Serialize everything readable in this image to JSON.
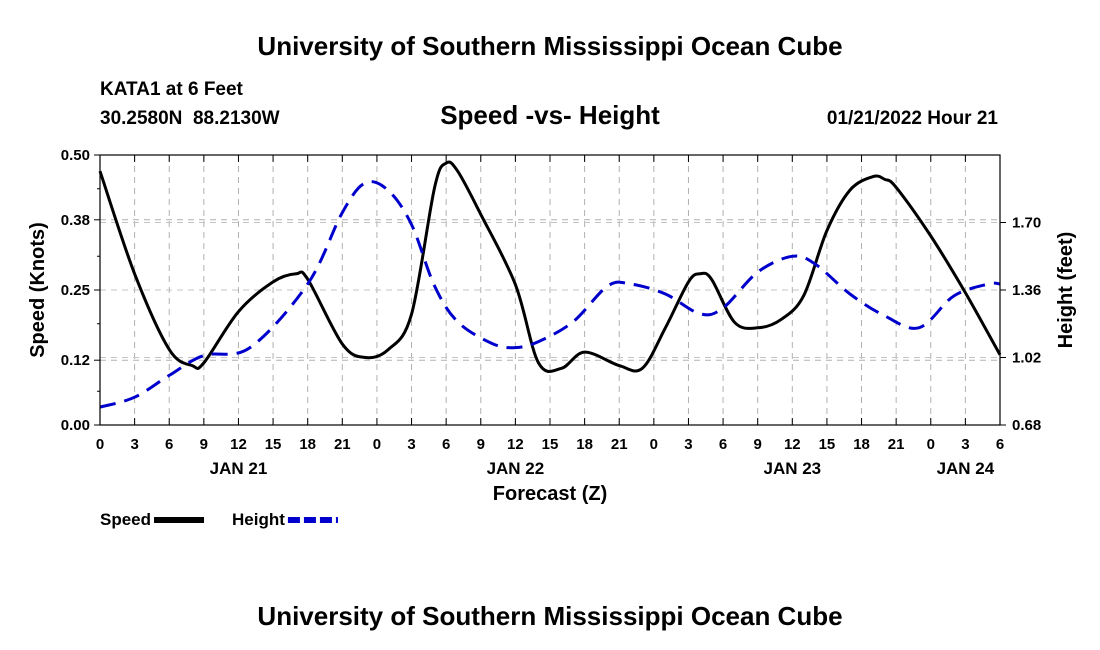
{
  "header": {
    "title": "University of Southern Mississippi Ocean Cube",
    "station": "KATA1 at 6 Feet",
    "coords": "30.2580N  88.2130W",
    "datetime": "01/21/2022 Hour 21",
    "footer_title": "University of Southern Mississippi Ocean Cube"
  },
  "chart_data": {
    "type": "line",
    "title": "Speed -vs- Height",
    "xlabel": "Forecast (Z)",
    "ylabel_left": "Speed (Knots)",
    "ylabel_right": "Height (feet)",
    "x_hours_from_start": [
      0,
      78
    ],
    "x_tick_labels": [
      "0",
      "3",
      "6",
      "9",
      "12",
      "15",
      "18",
      "21",
      "0",
      "3",
      "6",
      "9",
      "12",
      "15",
      "18",
      "21",
      "0",
      "3",
      "6",
      "9",
      "12",
      "15",
      "18",
      "21",
      "0",
      "3",
      "6"
    ],
    "day_labels": [
      {
        "label": "JAN 21",
        "hour": 12
      },
      {
        "label": "JAN 22",
        "hour": 36
      },
      {
        "label": "JAN 23",
        "hour": 60
      },
      {
        "label": "JAN 24",
        "hour": 75
      }
    ],
    "ylim_left": [
      0,
      0.5
    ],
    "yticks_left": [
      "0.00",
      "0.12",
      "0.25",
      "0.38",
      "0.50"
    ],
    "ylim_right": [
      0.68,
      2.04
    ],
    "yticks_right": [
      "0.68",
      "1.02",
      "1.36",
      "1.70"
    ],
    "grid": true,
    "series": [
      {
        "name": "Speed",
        "axis": "left",
        "color": "#000000",
        "dash": "solid",
        "points": [
          [
            0,
            0.47
          ],
          [
            3,
            0.28
          ],
          [
            6,
            0.14
          ],
          [
            8,
            0.11
          ],
          [
            9,
            0.115
          ],
          [
            12,
            0.21
          ],
          [
            15,
            0.265
          ],
          [
            17,
            0.28
          ],
          [
            18,
            0.27
          ],
          [
            21,
            0.15
          ],
          [
            23,
            0.125
          ],
          [
            25,
            0.14
          ],
          [
            27,
            0.205
          ],
          [
            29,
            0.44
          ],
          [
            30,
            0.485
          ],
          [
            31,
            0.47
          ],
          [
            33,
            0.39
          ],
          [
            36,
            0.26
          ],
          [
            38,
            0.115
          ],
          [
            40,
            0.105
          ],
          [
            42,
            0.135
          ],
          [
            45,
            0.11
          ],
          [
            47,
            0.105
          ],
          [
            49,
            0.18
          ],
          [
            51,
            0.265
          ],
          [
            52,
            0.28
          ],
          [
            53,
            0.27
          ],
          [
            55,
            0.19
          ],
          [
            57,
            0.18
          ],
          [
            59,
            0.195
          ],
          [
            61,
            0.24
          ],
          [
            63,
            0.36
          ],
          [
            65,
            0.435
          ],
          [
            67,
            0.46
          ],
          [
            68,
            0.455
          ],
          [
            69,
            0.44
          ],
          [
            72,
            0.35
          ],
          [
            75,
            0.245
          ],
          [
            78,
            0.13
          ]
        ]
      },
      {
        "name": "Height",
        "axis": "right",
        "color": "#0000cc",
        "dash": "dashed",
        "points": [
          [
            0,
            0.77
          ],
          [
            3,
            0.82
          ],
          [
            6,
            0.93
          ],
          [
            9,
            1.03
          ],
          [
            13,
            1.07
          ],
          [
            18,
            1.39
          ],
          [
            21,
            1.75
          ],
          [
            23,
            1.9
          ],
          [
            25,
            1.86
          ],
          [
            27,
            1.69
          ],
          [
            29,
            1.38
          ],
          [
            31,
            1.2
          ],
          [
            34,
            1.09
          ],
          [
            36,
            1.07
          ],
          [
            38,
            1.1
          ],
          [
            41,
            1.2
          ],
          [
            44,
            1.38
          ],
          [
            46,
            1.39
          ],
          [
            49,
            1.34
          ],
          [
            52,
            1.24
          ],
          [
            54,
            1.27
          ],
          [
            57,
            1.45
          ],
          [
            60,
            1.53
          ],
          [
            62,
            1.49
          ],
          [
            65,
            1.34
          ],
          [
            68,
            1.23
          ],
          [
            71,
            1.17
          ],
          [
            74,
            1.33
          ],
          [
            77,
            1.39
          ],
          [
            78,
            1.39
          ]
        ]
      }
    ],
    "legend": [
      {
        "label": "Speed",
        "color": "#000000",
        "dash": "solid"
      },
      {
        "label": "Height",
        "color": "#0000cc",
        "dash": "dashed"
      }
    ]
  }
}
